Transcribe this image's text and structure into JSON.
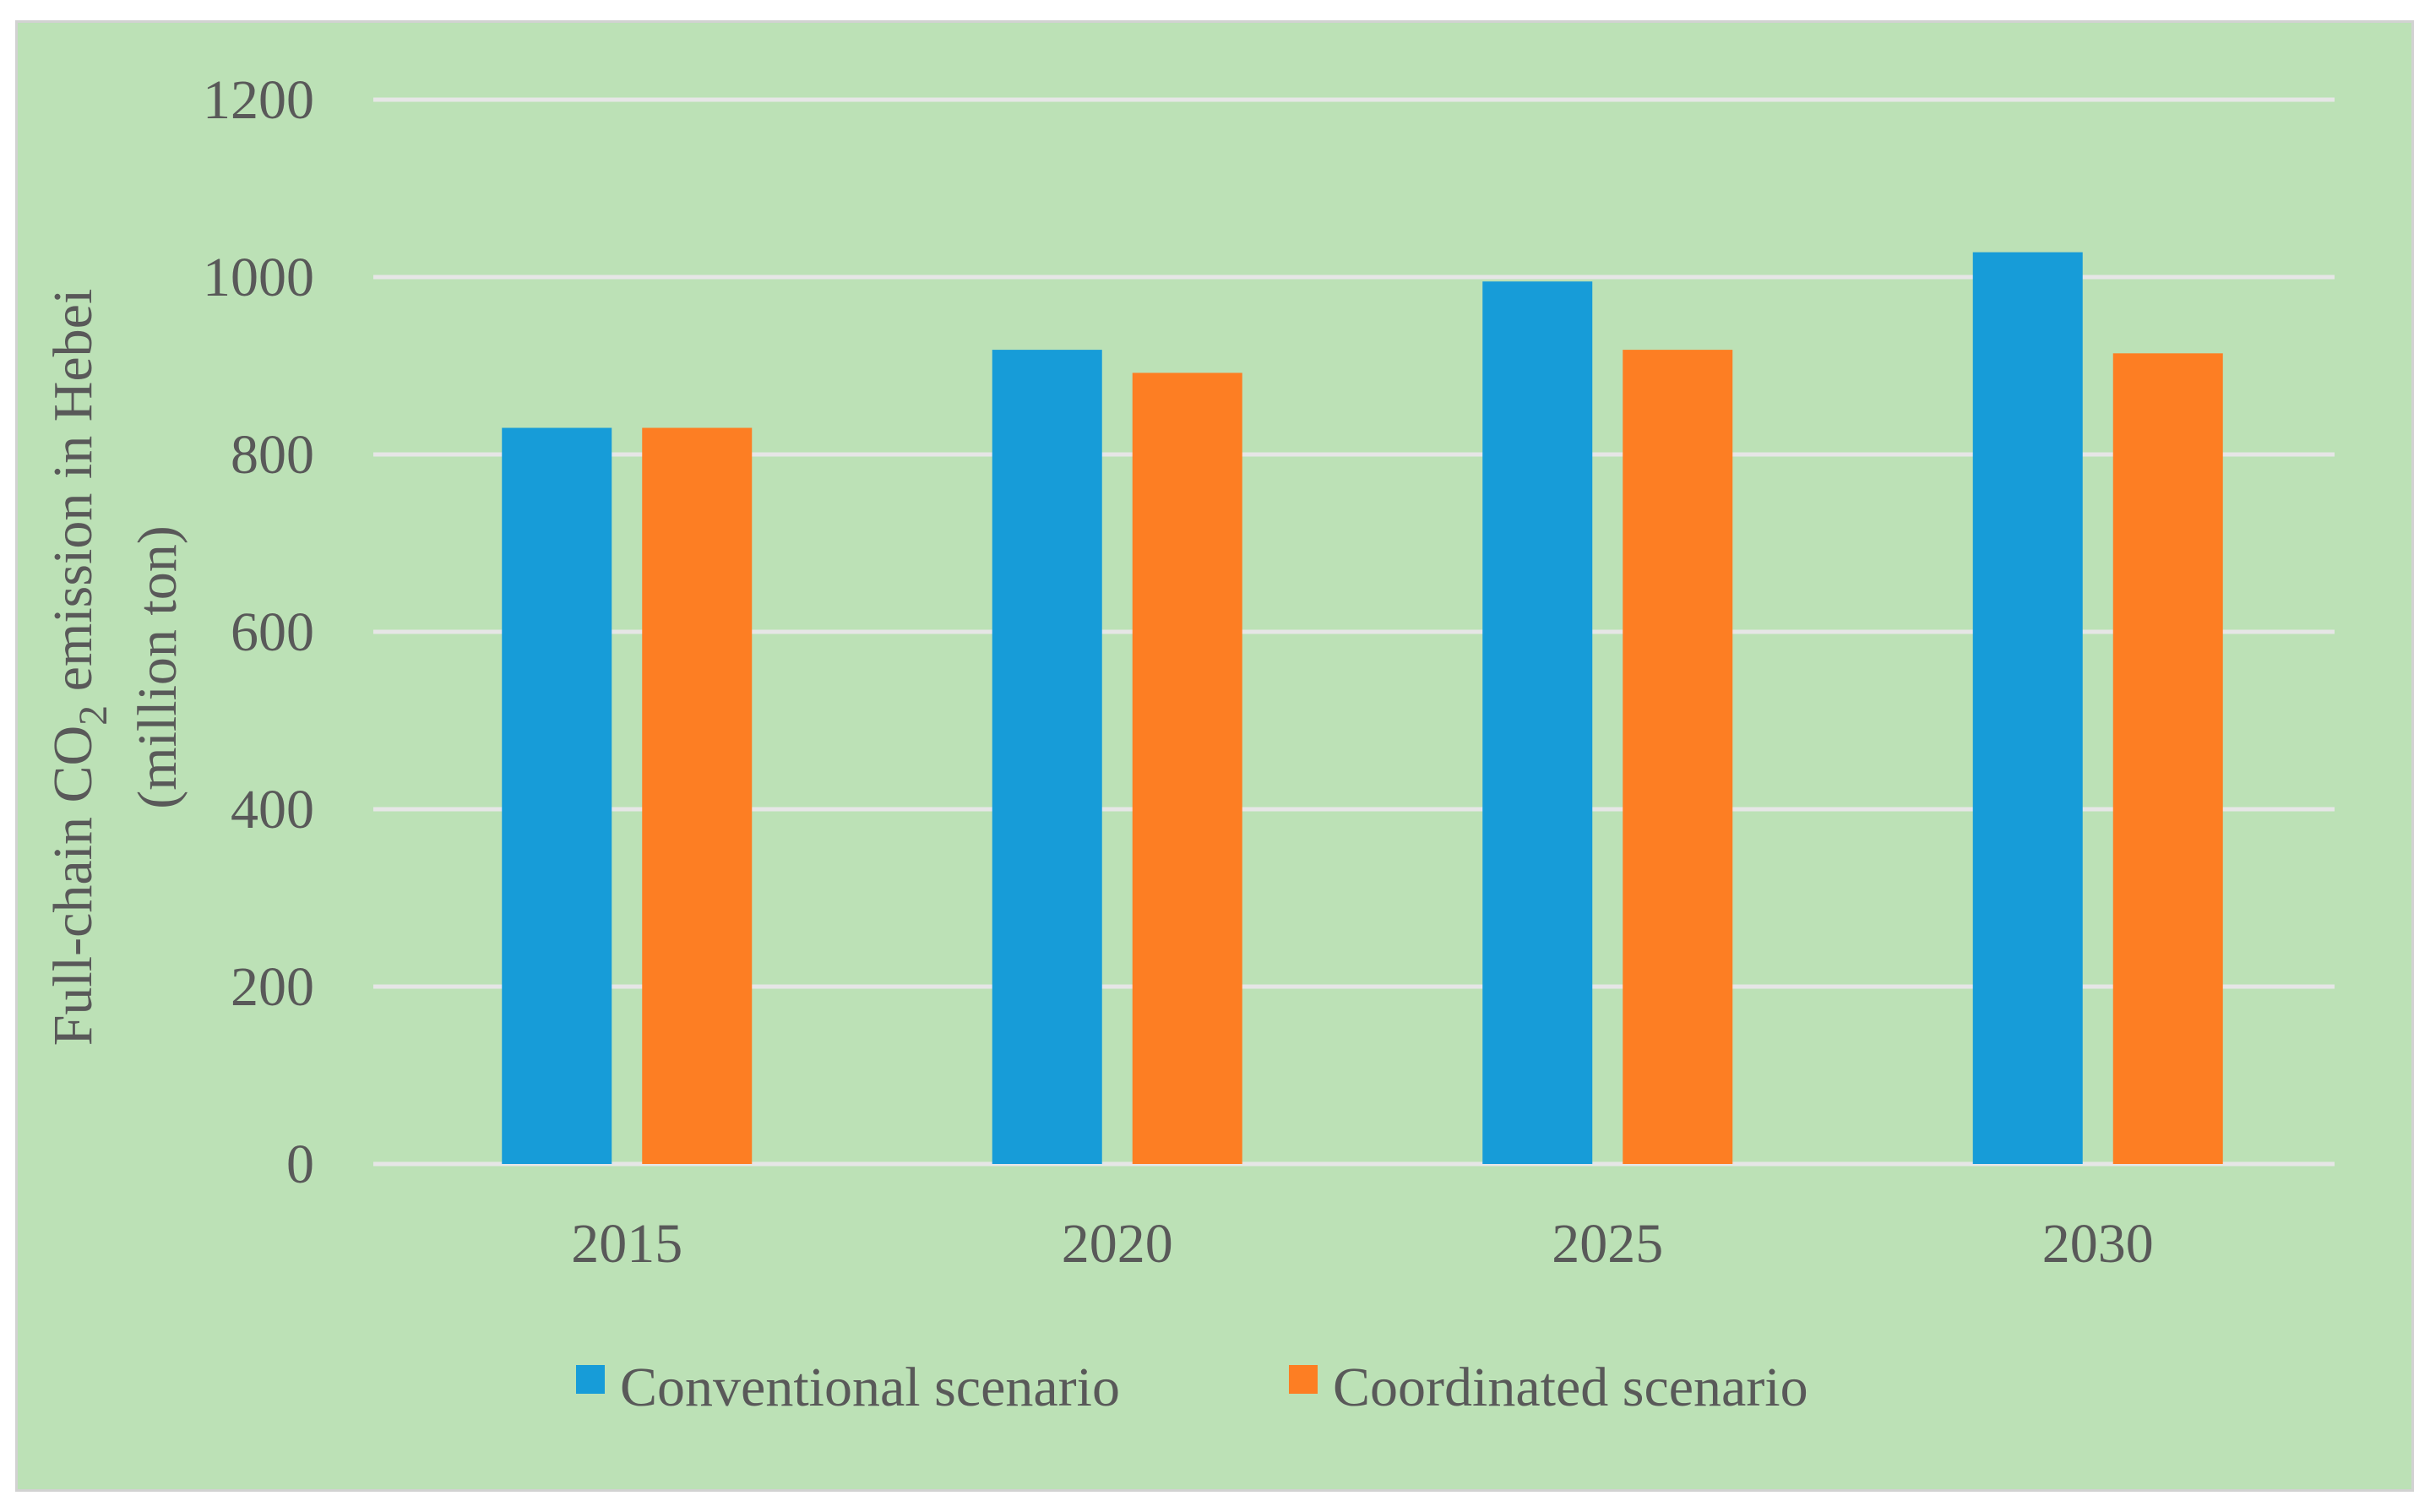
{
  "chart_data": {
    "type": "bar",
    "title": "",
    "xlabel": "",
    "ylabel": {
      "line1_pre": "Full-chain CO",
      "line1_sub": "2",
      "line1_post": " emission in Hebei",
      "line2": "(million ton)"
    },
    "categories": [
      "2015",
      "2020",
      "2025",
      "2030"
    ],
    "series": [
      {
        "name": "Conventional scenario",
        "color": "#179cd8",
        "values": [
          830,
          918,
          995,
          1028
        ]
      },
      {
        "name": "Coordinated scenario",
        "color": "#fd7e23",
        "values": [
          830,
          892,
          918,
          914
        ]
      }
    ],
    "ylim": [
      0,
      1200
    ],
    "yticks": [
      0,
      200,
      400,
      600,
      800,
      1000,
      1200
    ],
    "grid": true,
    "legend": "bottom-center"
  }
}
